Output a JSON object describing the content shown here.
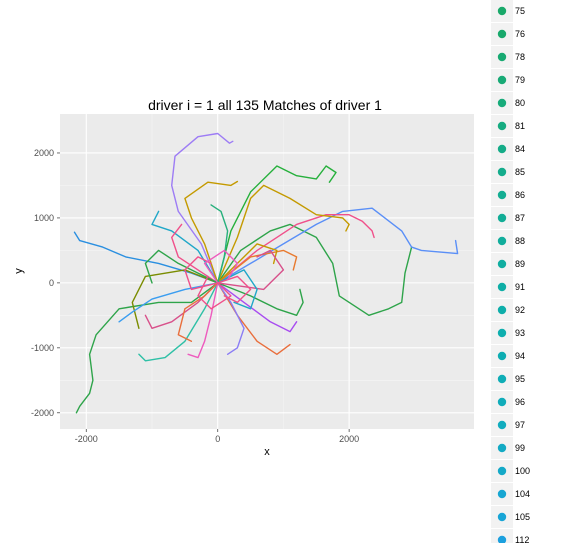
{
  "chart_data": {
    "type": "line",
    "title": "driver i = 1 all 135 Matches of driver 1",
    "xlabel": "x",
    "ylabel": "y",
    "xlim": [
      -2400,
      3900
    ],
    "ylim": [
      -2250,
      2600
    ],
    "x_ticks": [
      {
        "value": -2000,
        "label": "-2000"
      },
      {
        "value": 0,
        "label": "0"
      },
      {
        "value": 2000,
        "label": "2000"
      }
    ],
    "y_ticks": [
      {
        "value": -2000,
        "label": "-2000"
      },
      {
        "value": -1000,
        "label": "-1000"
      },
      {
        "value": 0,
        "label": "0"
      },
      {
        "value": 1000,
        "label": "1000"
      },
      {
        "value": 2000,
        "label": "2000"
      }
    ],
    "grid": true,
    "legend_position": "right",
    "legend": [
      {
        "label": "75",
        "color": "#19A96A"
      },
      {
        "label": "76",
        "color": "#19A96C"
      },
      {
        "label": "78",
        "color": "#18AA72"
      },
      {
        "label": "79",
        "color": "#18AA76"
      },
      {
        "label": "80",
        "color": "#17AB7A"
      },
      {
        "label": "81",
        "color": "#16AB80"
      },
      {
        "label": "84",
        "color": "#15AC88"
      },
      {
        "label": "85",
        "color": "#14AC8C"
      },
      {
        "label": "86",
        "color": "#13AD92"
      },
      {
        "label": "87",
        "color": "#12AD96"
      },
      {
        "label": "88",
        "color": "#11AD9C"
      },
      {
        "label": "89",
        "color": "#10ADA0"
      },
      {
        "label": "91",
        "color": "#0FAEA6"
      },
      {
        "label": "92",
        "color": "#0EAEAA"
      },
      {
        "label": "93",
        "color": "#0EAEAE"
      },
      {
        "label": "94",
        "color": "#0EADB2"
      },
      {
        "label": "95",
        "color": "#0FADB6"
      },
      {
        "label": "96",
        "color": "#10ACBA"
      },
      {
        "label": "97",
        "color": "#11ACBE"
      },
      {
        "label": "99",
        "color": "#13AAC4"
      },
      {
        "label": "100",
        "color": "#14A9C8"
      },
      {
        "label": "104",
        "color": "#17A6D2"
      },
      {
        "label": "105",
        "color": "#18A5D6"
      },
      {
        "label": "112",
        "color": "#1CA0DE"
      }
    ],
    "series": [
      {
        "color": "#9D7CF5",
        "points": [
          [
            0,
            0
          ],
          [
            -250,
            600
          ],
          [
            -600,
            1100
          ],
          [
            -700,
            1500
          ],
          [
            -650,
            1950
          ],
          [
            -300,
            2250
          ],
          [
            0,
            2300
          ],
          [
            180,
            2150
          ],
          [
            230,
            2180
          ]
        ]
      },
      {
        "color": "#2EA44A",
        "points": [
          [
            0,
            0
          ],
          [
            350,
            500
          ],
          [
            800,
            800
          ],
          [
            1100,
            900
          ],
          [
            1500,
            700
          ],
          [
            1750,
            300
          ],
          [
            1850,
            -200
          ],
          [
            2300,
            -500
          ],
          [
            2600,
            -400
          ],
          [
            2800,
            -300
          ],
          [
            2850,
            150
          ],
          [
            2950,
            550
          ]
        ]
      },
      {
        "color": "#5A8FF7",
        "points": [
          [
            0,
            0
          ],
          [
            500,
            300
          ],
          [
            1000,
            600
          ],
          [
            1500,
            900
          ],
          [
            1900,
            1100
          ],
          [
            2350,
            1150
          ],
          [
            2800,
            800
          ],
          [
            2950,
            550
          ],
          [
            3100,
            500
          ],
          [
            3650,
            450
          ],
          [
            3620,
            650
          ]
        ]
      },
      {
        "color": "#2EA44A",
        "points": [
          [
            0,
            0
          ],
          [
            -400,
            -300
          ],
          [
            -900,
            -300
          ],
          [
            -1500,
            -400
          ],
          [
            -1850,
            -800
          ],
          [
            -1950,
            -1100
          ],
          [
            -1900,
            -1500
          ],
          [
            -1950,
            -1700
          ],
          [
            -2100,
            -1900
          ],
          [
            -2150,
            -2000
          ]
        ]
      },
      {
        "color": "#2A8FE0",
        "points": [
          [
            0,
            0
          ],
          [
            -400,
            150
          ],
          [
            -900,
            300
          ],
          [
            -1400,
            400
          ],
          [
            -1750,
            550
          ],
          [
            -2100,
            650
          ],
          [
            -2180,
            780
          ]
        ]
      },
      {
        "color": "#F0508A",
        "points": [
          [
            0,
            0
          ],
          [
            600,
            500
          ],
          [
            1200,
            900
          ],
          [
            1650,
            1050
          ],
          [
            2000,
            1050
          ],
          [
            2200,
            950
          ],
          [
            2350,
            800
          ],
          [
            2380,
            700
          ]
        ]
      },
      {
        "color": "#C49A00",
        "points": [
          [
            0,
            0
          ],
          [
            300,
            700
          ],
          [
            500,
            1300
          ],
          [
            700,
            1500
          ],
          [
            1100,
            1300
          ],
          [
            1500,
            1050
          ],
          [
            1900,
            1000
          ],
          [
            2000,
            900
          ],
          [
            1950,
            800
          ]
        ]
      },
      {
        "color": "#26B03C",
        "points": [
          [
            0,
            0
          ],
          [
            200,
            800
          ],
          [
            500,
            1400
          ],
          [
            900,
            1800
          ],
          [
            1200,
            1650
          ],
          [
            1500,
            1600
          ],
          [
            1650,
            1800
          ],
          [
            1800,
            1700
          ],
          [
            1700,
            1550
          ]
        ]
      },
      {
        "color": "#C49A00",
        "points": [
          [
            0,
            0
          ],
          [
            -200,
            600
          ],
          [
            -400,
            1000
          ],
          [
            -500,
            1300
          ],
          [
            -150,
            1550
          ],
          [
            200,
            1500
          ],
          [
            300,
            1560
          ]
        ]
      },
      {
        "color": "#2EC0A6",
        "points": [
          [
            0,
            0
          ],
          [
            -200,
            -400
          ],
          [
            -500,
            -900
          ],
          [
            -800,
            -1150
          ],
          [
            -1100,
            -1200
          ],
          [
            -1200,
            -1100
          ]
        ]
      },
      {
        "color": "#D8508A",
        "points": [
          [
            0,
            0
          ],
          [
            -300,
            -300
          ],
          [
            -700,
            -600
          ],
          [
            -1000,
            -700
          ],
          [
            -1100,
            -500
          ]
        ]
      },
      {
        "color": "#A84CF0",
        "points": [
          [
            0,
            0
          ],
          [
            400,
            -300
          ],
          [
            800,
            -600
          ],
          [
            1100,
            -750
          ],
          [
            1200,
            -600
          ]
        ]
      },
      {
        "color": "#7A8C00",
        "points": [
          [
            0,
            0
          ],
          [
            -500,
            200
          ],
          [
            -1100,
            100
          ],
          [
            -1300,
            -300
          ],
          [
            -1200,
            -700
          ]
        ]
      },
      {
        "color": "#E96E3C",
        "points": [
          [
            0,
            0
          ],
          [
            300,
            -500
          ],
          [
            600,
            -900
          ],
          [
            900,
            -1100
          ],
          [
            1100,
            -950
          ]
        ]
      },
      {
        "color": "#1FA7C8",
        "points": [
          [
            0,
            0
          ],
          [
            -300,
            500
          ],
          [
            -700,
            800
          ],
          [
            -1000,
            900
          ],
          [
            -900,
            1100
          ]
        ]
      },
      {
        "color": "#2EA44A",
        "points": [
          [
            0,
            0
          ],
          [
            500,
            -200
          ],
          [
            900,
            -400
          ],
          [
            1200,
            -500
          ],
          [
            1300,
            -300
          ],
          [
            1250,
            -100
          ]
        ]
      },
      {
        "color": "#EE5BBE",
        "points": [
          [
            0,
            0
          ],
          [
            -100,
            -500
          ],
          [
            -200,
            -900
          ],
          [
            -300,
            -1150
          ],
          [
            -450,
            -1100
          ]
        ]
      },
      {
        "color": "#E87A2F",
        "points": [
          [
            0,
            0
          ],
          [
            500,
            400
          ],
          [
            1000,
            500
          ],
          [
            1200,
            400
          ],
          [
            1150,
            200
          ]
        ]
      },
      {
        "color": "#3A9DF0",
        "points": [
          [
            0,
            0
          ],
          [
            -500,
            -100
          ],
          [
            -1000,
            -250
          ],
          [
            -1300,
            -450
          ],
          [
            -1500,
            -600
          ]
        ]
      },
      {
        "color": "#C49A00",
        "points": [
          [
            0,
            0
          ],
          [
            300,
            300
          ],
          [
            600,
            600
          ],
          [
            900,
            500
          ],
          [
            850,
            300
          ]
        ]
      },
      {
        "color": "#F0508A",
        "points": [
          [
            0,
            0
          ],
          [
            -300,
            200
          ],
          [
            -600,
            400
          ],
          [
            -700,
            700
          ],
          [
            -550,
            900
          ]
        ]
      },
      {
        "color": "#26B07C",
        "points": [
          [
            0,
            0
          ],
          [
            100,
            400
          ],
          [
            150,
            800
          ],
          [
            50,
            1100
          ],
          [
            -100,
            1200
          ]
        ]
      },
      {
        "color": "#8A7CF5",
        "points": [
          [
            0,
            0
          ],
          [
            200,
            -300
          ],
          [
            400,
            -700
          ],
          [
            300,
            -1000
          ],
          [
            150,
            -1100
          ]
        ]
      },
      {
        "color": "#D8508A",
        "points": [
          [
            0,
            0
          ],
          [
            700,
            -100
          ],
          [
            1000,
            200
          ],
          [
            800,
            500
          ],
          [
            600,
            400
          ]
        ]
      },
      {
        "color": "#2EA44A",
        "points": [
          [
            0,
            0
          ],
          [
            -600,
            300
          ],
          [
            -900,
            500
          ],
          [
            -1100,
            300
          ],
          [
            -1000,
            0
          ]
        ]
      },
      {
        "color": "#E96E3C",
        "points": [
          [
            0,
            0
          ],
          [
            -200,
            -200
          ],
          [
            -500,
            -400
          ],
          [
            -600,
            -800
          ],
          [
            -400,
            -900
          ]
        ]
      },
      {
        "color": "#1FA7C8",
        "points": [
          [
            0,
            0
          ],
          [
            400,
            200
          ],
          [
            600,
            -100
          ],
          [
            500,
            -400
          ],
          [
            250,
            -300
          ]
        ]
      },
      {
        "color": "#F0508A",
        "points": [
          [
            0,
            0
          ],
          [
            -400,
            -100
          ],
          [
            -500,
            200
          ],
          [
            -300,
            400
          ],
          [
            -100,
            300
          ]
        ]
      },
      {
        "color": "#F0508A",
        "points": [
          [
            0,
            0
          ],
          [
            300,
            100
          ],
          [
            500,
            -100
          ],
          [
            300,
            -300
          ],
          [
            100,
            -200
          ]
        ]
      },
      {
        "color": "#EE5BBE",
        "points": [
          [
            0,
            0
          ],
          [
            -200,
            300
          ],
          [
            100,
            500
          ],
          [
            300,
            300
          ],
          [
            150,
            50
          ]
        ]
      },
      {
        "color": "#F0508A",
        "points": [
          [
            0,
            0
          ],
          [
            200,
            -200
          ],
          [
            -100,
            -400
          ],
          [
            -300,
            -200
          ],
          [
            -150,
            100
          ]
        ]
      }
    ]
  }
}
